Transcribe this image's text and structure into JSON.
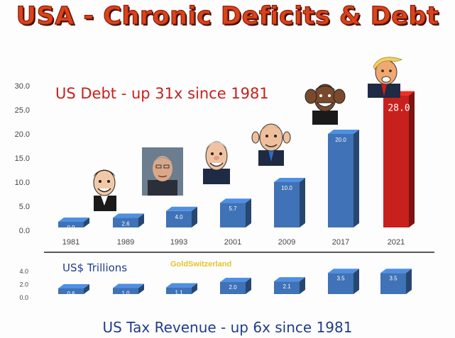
{
  "title": "USA - Chronic Deficits & Debt",
  "debt_annotation": "US Debt  -  up 31x since 1981",
  "unit_label": "US$ Trillions",
  "watermark": "GoldSwitzerland",
  "tax_annotation": "US Tax Revenue  - up 6x since 1981",
  "colors": {
    "bar_blue": "#3f72b6",
    "bar_red": "#c8201c",
    "title": "#d9441a",
    "annotation_red": "#c8201c",
    "annotation_blue": "#1f3d8c"
  },
  "portraits": [
    "caricature-1981",
    "portrait-1989",
    "caricature-1993",
    "caricature-2001",
    "caricature-2009",
    "caricature-2021"
  ],
  "chart_data": [
    {
      "type": "bar",
      "title": "",
      "categories": [
        "1981",
        "1989",
        "1993",
        "2001",
        "2009",
        "2017",
        "2021"
      ],
      "values": [
        0.9,
        2.6,
        4.0,
        5.7,
        10.0,
        20.0,
        28.0
      ],
      "value_labels": [
        "0.9",
        "2.6",
        "4.0",
        "5.7",
        "10.0",
        "20.0",
        "28.0"
      ],
      "y_ticks": [
        "0.0",
        "5.0",
        "10.0",
        "15.0",
        "20.0",
        "25.0",
        "30.0"
      ],
      "ylim": [
        0,
        30
      ],
      "highlight_index": 6,
      "grid": false
    },
    {
      "type": "bar",
      "title": "",
      "categories": [
        "1981",
        "1989",
        "1993",
        "2001",
        "2009",
        "2017",
        "2021"
      ],
      "values": [
        0.6,
        1.0,
        1.1,
        2.0,
        2.1,
        3.5,
        3.5
      ],
      "value_labels": [
        "0.6",
        "1.0",
        "1.1",
        "2.0",
        "2.1",
        "3.5",
        "3.5"
      ],
      "y_ticks": [
        "0.0",
        "2.0",
        "4.0"
      ],
      "ylim": [
        0,
        4
      ],
      "grid": false
    }
  ]
}
